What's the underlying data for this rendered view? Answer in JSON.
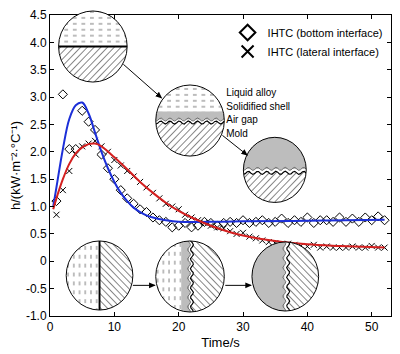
{
  "chart_data": {
    "type": "scatter",
    "x_label": "Time/s",
    "y_label": "h/(kW·m⁻²·°C⁻¹)",
    "xlim": [
      0,
      53
    ],
    "xticks": [
      0,
      10,
      20,
      30,
      40,
      50
    ],
    "ylim": [
      -1,
      4.5
    ],
    "yticks": [
      {
        "value": -1,
        "label": "-1.0"
      },
      -0.5,
      0,
      0.5,
      {
        "value": 1,
        "label": "1.0"
      },
      1.5,
      {
        "value": 2,
        "label": "2.0"
      },
      2.5,
      {
        "value": 3,
        "label": "3.0"
      },
      3.5,
      {
        "value": 4,
        "label": "4.0"
      },
      4.5
    ],
    "grid": false,
    "legend": "upper right",
    "annotations": [
      "Liquid alloy",
      "Solidified shell",
      "Air gap",
      "Mold"
    ],
    "series": [
      {
        "name": "IHTC (bottom interface)",
        "type": "scatter",
        "marker": "diamond",
        "color": "#000000",
        "x": [
          1,
          2,
          3,
          4,
          5,
          6,
          7,
          8,
          9,
          10,
          11,
          12,
          13,
          14,
          15,
          16,
          17,
          18,
          19,
          20,
          21,
          22,
          23,
          24,
          25,
          26,
          27,
          28,
          29,
          30,
          31,
          32,
          33,
          34,
          35,
          36,
          37,
          38,
          39,
          40,
          41,
          42,
          43,
          44,
          45,
          46,
          47,
          48,
          49,
          50,
          51,
          52
        ],
        "values": [
          1.1,
          3.05,
          2.05,
          2.05,
          2.75,
          2.55,
          2.4,
          1.95,
          1.7,
          1.5,
          1.3,
          1.15,
          1.05,
          0.95,
          0.9,
          0.8,
          0.75,
          0.72,
          0.62,
          0.65,
          0.7,
          0.62,
          0.65,
          0.72,
          0.7,
          0.65,
          0.7,
          0.72,
          0.7,
          0.75,
          0.7,
          0.72,
          0.75,
          0.7,
          0.72,
          0.78,
          0.7,
          0.75,
          0.72,
          0.8,
          0.7,
          0.75,
          0.75,
          0.72,
          0.8,
          0.72,
          0.78,
          0.72,
          0.8,
          0.75,
          0.82,
          0.75
        ]
      },
      {
        "name": "IHTC (lateral interface)",
        "type": "scatter",
        "marker": "x",
        "color": "#000000",
        "x": [
          1,
          2,
          3,
          4,
          5,
          6,
          7,
          8,
          9,
          10,
          11,
          12,
          13,
          14,
          15,
          16,
          17,
          18,
          19,
          20,
          21,
          22,
          23,
          24,
          25,
          26,
          27,
          28,
          29,
          30,
          31,
          32,
          33,
          34,
          35,
          36,
          37,
          38,
          39,
          40,
          41,
          42,
          43,
          44,
          45,
          46,
          47,
          48,
          49,
          50,
          51,
          52
        ],
        "values": [
          0.85,
          1.3,
          1.65,
          1.95,
          2.1,
          2.15,
          2.2,
          2.1,
          2.0,
          1.85,
          1.75,
          1.65,
          1.55,
          1.45,
          1.35,
          1.25,
          1.15,
          1.05,
          1.0,
          0.95,
          0.85,
          0.8,
          0.75,
          0.7,
          0.65,
          0.62,
          0.6,
          0.55,
          0.5,
          0.52,
          0.45,
          0.42,
          0.38,
          0.35,
          0.33,
          0.3,
          0.32,
          0.3,
          0.28,
          0.27,
          0.3,
          0.25,
          0.27,
          0.25,
          0.25,
          0.25,
          0.27,
          0.25,
          0.25,
          0.28,
          0.25,
          0.25
        ]
      },
      {
        "type": "line",
        "line_style": "solid",
        "color": "#1c2fd8",
        "x": [
          0.5,
          1,
          2,
          3,
          4,
          5,
          6,
          7,
          8,
          9,
          10,
          11,
          12,
          13,
          14,
          15,
          16,
          18,
          20,
          25,
          30,
          40,
          52
        ],
        "values": [
          1.0,
          1.35,
          2.05,
          2.6,
          2.85,
          2.9,
          2.7,
          2.35,
          2.0,
          1.7,
          1.45,
          1.25,
          1.1,
          0.98,
          0.9,
          0.84,
          0.8,
          0.75,
          0.72,
          0.72,
          0.73,
          0.74,
          0.76
        ]
      },
      {
        "type": "line",
        "line_style": "solid",
        "color": "#d42020",
        "x": [
          0.5,
          1,
          2,
          3,
          4,
          5,
          6,
          7,
          8,
          10,
          12,
          14,
          16,
          18,
          20,
          22,
          25,
          28,
          30,
          35,
          40,
          45,
          52
        ],
        "values": [
          0.95,
          1.15,
          1.5,
          1.78,
          1.97,
          2.08,
          2.14,
          2.15,
          2.1,
          1.9,
          1.68,
          1.45,
          1.25,
          1.07,
          0.92,
          0.8,
          0.65,
          0.53,
          0.47,
          0.37,
          0.31,
          0.28,
          0.25
        ]
      }
    ]
  }
}
